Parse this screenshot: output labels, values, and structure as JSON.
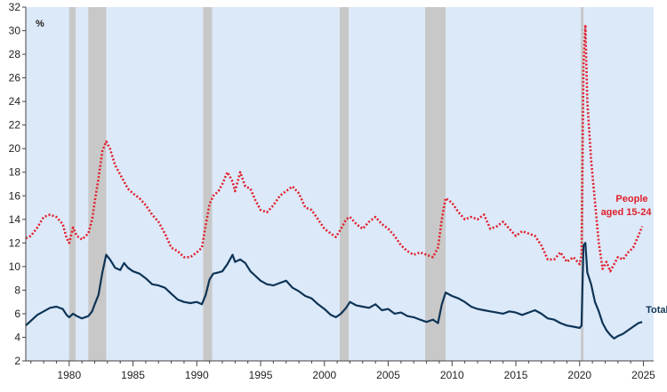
{
  "chart_data": {
    "type": "line",
    "unit_label": "%",
    "ylim": [
      2,
      32
    ],
    "y_ticks": [
      2,
      4,
      6,
      8,
      10,
      12,
      14,
      16,
      18,
      20,
      22,
      24,
      26,
      28,
      30,
      32
    ],
    "xlim": [
      1976.6,
      2025.8
    ],
    "x_ticks": [
      1980,
      1985,
      1990,
      1995,
      2000,
      2005,
      2010,
      2015,
      2020,
      2025
    ],
    "grid": false,
    "background_color": "#dce9f9",
    "recession_color": "#c8c8c8",
    "recessions": [
      [
        1980.0,
        1980.5
      ],
      [
        1981.5,
        1982.9
      ],
      [
        1990.5,
        1991.2
      ],
      [
        2001.2,
        2001.9
      ],
      [
        2007.9,
        2009.5
      ],
      [
        2020.1,
        2020.3
      ]
    ],
    "series": [
      {
        "name": "Total",
        "color": "#0d3456",
        "style": "solid",
        "points": [
          [
            1976.6,
            5.0
          ],
          [
            1977.0,
            5.4
          ],
          [
            1977.5,
            5.9
          ],
          [
            1978.0,
            6.2
          ],
          [
            1978.5,
            6.5
          ],
          [
            1979.0,
            6.6
          ],
          [
            1979.5,
            6.4
          ],
          [
            1979.8,
            5.9
          ],
          [
            1980.0,
            5.7
          ],
          [
            1980.3,
            6.0
          ],
          [
            1980.6,
            5.8
          ],
          [
            1981.0,
            5.6
          ],
          [
            1981.5,
            5.8
          ],
          [
            1981.8,
            6.2
          ],
          [
            1982.0,
            6.8
          ],
          [
            1982.3,
            7.6
          ],
          [
            1982.6,
            9.5
          ],
          [
            1982.9,
            11.0
          ],
          [
            1983.2,
            10.6
          ],
          [
            1983.6,
            9.9
          ],
          [
            1984.0,
            9.7
          ],
          [
            1984.3,
            10.3
          ],
          [
            1984.6,
            9.9
          ],
          [
            1985.0,
            9.6
          ],
          [
            1985.5,
            9.4
          ],
          [
            1986.0,
            9.0
          ],
          [
            1986.5,
            8.5
          ],
          [
            1987.0,
            8.4
          ],
          [
            1987.5,
            8.2
          ],
          [
            1988.0,
            7.7
          ],
          [
            1988.5,
            7.2
          ],
          [
            1989.0,
            7.0
          ],
          [
            1989.5,
            6.9
          ],
          [
            1990.0,
            7.0
          ],
          [
            1990.4,
            6.8
          ],
          [
            1990.7,
            7.6
          ],
          [
            1991.0,
            8.9
          ],
          [
            1991.3,
            9.4
          ],
          [
            1991.7,
            9.5
          ],
          [
            1992.0,
            9.6
          ],
          [
            1992.4,
            10.2
          ],
          [
            1992.8,
            11.0
          ],
          [
            1993.0,
            10.4
          ],
          [
            1993.4,
            10.6
          ],
          [
            1993.8,
            10.3
          ],
          [
            1994.2,
            9.6
          ],
          [
            1994.6,
            9.2
          ],
          [
            1995.0,
            8.8
          ],
          [
            1995.5,
            8.5
          ],
          [
            1996.0,
            8.4
          ],
          [
            1996.5,
            8.6
          ],
          [
            1997.0,
            8.8
          ],
          [
            1997.5,
            8.2
          ],
          [
            1998.0,
            7.9
          ],
          [
            1998.5,
            7.5
          ],
          [
            1999.0,
            7.3
          ],
          [
            1999.5,
            6.8
          ],
          [
            2000.0,
            6.4
          ],
          [
            2000.5,
            5.9
          ],
          [
            2000.9,
            5.7
          ],
          [
            2001.3,
            6.0
          ],
          [
            2001.7,
            6.5
          ],
          [
            2002.0,
            7.0
          ],
          [
            2002.5,
            6.7
          ],
          [
            2003.0,
            6.6
          ],
          [
            2003.5,
            6.5
          ],
          [
            2004.0,
            6.8
          ],
          [
            2004.5,
            6.3
          ],
          [
            2005.0,
            6.4
          ],
          [
            2005.5,
            6.0
          ],
          [
            2006.0,
            6.1
          ],
          [
            2006.5,
            5.8
          ],
          [
            2007.0,
            5.7
          ],
          [
            2007.5,
            5.5
          ],
          [
            2008.0,
            5.3
          ],
          [
            2008.5,
            5.5
          ],
          [
            2008.9,
            5.2
          ],
          [
            2009.2,
            6.8
          ],
          [
            2009.5,
            7.8
          ],
          [
            2010.0,
            7.5
          ],
          [
            2010.5,
            7.3
          ],
          [
            2011.0,
            7.0
          ],
          [
            2011.5,
            6.6
          ],
          [
            2012.0,
            6.4
          ],
          [
            2012.5,
            6.3
          ],
          [
            2013.0,
            6.2
          ],
          [
            2013.5,
            6.1
          ],
          [
            2014.0,
            6.0
          ],
          [
            2014.5,
            6.2
          ],
          [
            2015.0,
            6.1
          ],
          [
            2015.5,
            5.9
          ],
          [
            2016.0,
            6.1
          ],
          [
            2016.5,
            6.3
          ],
          [
            2017.0,
            6.0
          ],
          [
            2017.5,
            5.6
          ],
          [
            2018.0,
            5.5
          ],
          [
            2018.5,
            5.2
          ],
          [
            2019.0,
            5.0
          ],
          [
            2019.5,
            4.9
          ],
          [
            2020.0,
            4.8
          ],
          [
            2020.15,
            5.0
          ],
          [
            2020.3,
            11.8
          ],
          [
            2020.45,
            12.0
          ],
          [
            2020.6,
            9.5
          ],
          [
            2020.9,
            8.5
          ],
          [
            2021.2,
            7.0
          ],
          [
            2021.5,
            6.2
          ],
          [
            2021.8,
            5.2
          ],
          [
            2022.1,
            4.6
          ],
          [
            2022.4,
            4.2
          ],
          [
            2022.7,
            3.9
          ],
          [
            2023.0,
            4.1
          ],
          [
            2023.4,
            4.3
          ],
          [
            2023.8,
            4.6
          ],
          [
            2024.2,
            4.9
          ],
          [
            2024.6,
            5.2
          ],
          [
            2024.9,
            5.3
          ]
        ]
      },
      {
        "name": "People aged 15-24",
        "color": "#e0202c",
        "style": "dotted",
        "points": [
          [
            1976.6,
            12.4
          ],
          [
            1977.0,
            12.6
          ],
          [
            1977.5,
            13.3
          ],
          [
            1978.0,
            14.2
          ],
          [
            1978.5,
            14.4
          ],
          [
            1979.0,
            14.2
          ],
          [
            1979.5,
            13.6
          ],
          [
            1979.8,
            12.4
          ],
          [
            1980.0,
            12.0
          ],
          [
            1980.3,
            13.3
          ],
          [
            1980.6,
            12.6
          ],
          [
            1981.0,
            12.3
          ],
          [
            1981.5,
            12.8
          ],
          [
            1981.8,
            14.0
          ],
          [
            1982.0,
            15.5
          ],
          [
            1982.3,
            17.5
          ],
          [
            1982.6,
            19.8
          ],
          [
            1982.9,
            20.6
          ],
          [
            1983.2,
            20.0
          ],
          [
            1983.6,
            18.6
          ],
          [
            1984.0,
            17.8
          ],
          [
            1984.3,
            17.2
          ],
          [
            1984.6,
            16.6
          ],
          [
            1985.0,
            16.2
          ],
          [
            1985.5,
            15.8
          ],
          [
            1986.0,
            15.2
          ],
          [
            1986.5,
            14.4
          ],
          [
            1987.0,
            13.8
          ],
          [
            1987.5,
            12.8
          ],
          [
            1988.0,
            11.6
          ],
          [
            1988.5,
            11.3
          ],
          [
            1989.0,
            10.8
          ],
          [
            1989.5,
            10.8
          ],
          [
            1990.0,
            11.2
          ],
          [
            1990.4,
            11.6
          ],
          [
            1990.7,
            13.5
          ],
          [
            1991.0,
            15.3
          ],
          [
            1991.3,
            16.0
          ],
          [
            1991.7,
            16.4
          ],
          [
            1992.0,
            17.0
          ],
          [
            1992.4,
            18.0
          ],
          [
            1992.8,
            17.2
          ],
          [
            1993.0,
            16.4
          ],
          [
            1993.4,
            18.0
          ],
          [
            1993.8,
            16.8
          ],
          [
            1994.2,
            16.6
          ],
          [
            1994.6,
            15.6
          ],
          [
            1995.0,
            14.8
          ],
          [
            1995.5,
            14.6
          ],
          [
            1996.0,
            15.2
          ],
          [
            1996.5,
            16.0
          ],
          [
            1997.0,
            16.4
          ],
          [
            1997.5,
            16.8
          ],
          [
            1998.0,
            16.2
          ],
          [
            1998.5,
            15.0
          ],
          [
            1999.0,
            14.8
          ],
          [
            1999.5,
            14.0
          ],
          [
            2000.0,
            13.2
          ],
          [
            2000.5,
            12.8
          ],
          [
            2000.9,
            12.5
          ],
          [
            2001.3,
            13.2
          ],
          [
            2001.7,
            14.0
          ],
          [
            2002.0,
            14.2
          ],
          [
            2002.5,
            13.6
          ],
          [
            2003.0,
            13.2
          ],
          [
            2003.5,
            13.8
          ],
          [
            2004.0,
            14.2
          ],
          [
            2004.5,
            13.6
          ],
          [
            2005.0,
            13.2
          ],
          [
            2005.5,
            12.6
          ],
          [
            2006.0,
            11.8
          ],
          [
            2006.5,
            11.3
          ],
          [
            2007.0,
            11.0
          ],
          [
            2007.5,
            11.2
          ],
          [
            2008.0,
            11.0
          ],
          [
            2008.5,
            10.8
          ],
          [
            2008.9,
            11.6
          ],
          [
            2009.2,
            14.0
          ],
          [
            2009.5,
            15.8
          ],
          [
            2010.0,
            15.4
          ],
          [
            2010.5,
            14.6
          ],
          [
            2011.0,
            14.0
          ],
          [
            2011.5,
            14.2
          ],
          [
            2012.0,
            14.0
          ],
          [
            2012.5,
            14.4
          ],
          [
            2013.0,
            13.2
          ],
          [
            2013.5,
            13.4
          ],
          [
            2014.0,
            13.8
          ],
          [
            2014.5,
            13.2
          ],
          [
            2015.0,
            12.6
          ],
          [
            2015.5,
            13.0
          ],
          [
            2016.0,
            12.8
          ],
          [
            2016.5,
            12.6
          ],
          [
            2017.0,
            11.8
          ],
          [
            2017.5,
            10.6
          ],
          [
            2018.0,
            10.6
          ],
          [
            2018.5,
            11.2
          ],
          [
            2019.0,
            10.4
          ],
          [
            2019.5,
            10.8
          ],
          [
            2020.0,
            10.2
          ],
          [
            2020.15,
            11.0
          ],
          [
            2020.3,
            27.0
          ],
          [
            2020.45,
            30.5
          ],
          [
            2020.6,
            24.0
          ],
          [
            2020.9,
            19.0
          ],
          [
            2021.2,
            15.5
          ],
          [
            2021.5,
            12.0
          ],
          [
            2021.8,
            9.8
          ],
          [
            2022.1,
            10.4
          ],
          [
            2022.4,
            9.6
          ],
          [
            2022.7,
            10.2
          ],
          [
            2023.0,
            10.8
          ],
          [
            2023.4,
            10.6
          ],
          [
            2023.8,
            11.2
          ],
          [
            2024.2,
            11.6
          ],
          [
            2024.6,
            12.6
          ],
          [
            2024.9,
            13.4
          ]
        ]
      }
    ]
  }
}
